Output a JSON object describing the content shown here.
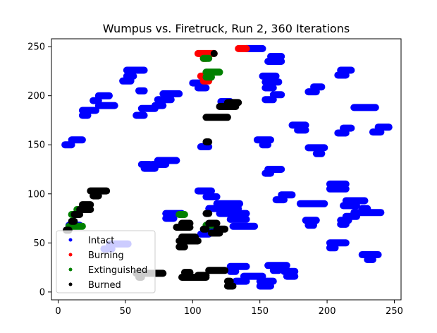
{
  "chart_data": {
    "type": "scatter",
    "title": "Wumpus vs. Firetruck, Run 2, 360 Iterations",
    "xlabel": "",
    "ylabel": "",
    "xlim": [
      -5,
      255
    ],
    "ylim": [
      -8,
      258
    ],
    "xticks": [
      0,
      50,
      100,
      150,
      200,
      250
    ],
    "yticks": [
      0,
      50,
      100,
      150,
      200,
      250
    ],
    "grid": false,
    "legend_position": "lower-left",
    "series": [
      {
        "name": "Intact",
        "color": "#0000ff",
        "segments": [
          [
            5,
            150,
            10,
            150
          ],
          [
            10,
            155,
            18,
            155
          ],
          [
            18,
            180,
            22,
            180
          ],
          [
            18,
            185,
            28,
            185
          ],
          [
            26,
            195,
            30,
            195
          ],
          [
            30,
            200,
            38,
            200
          ],
          [
            30,
            190,
            42,
            190
          ],
          [
            48,
            215,
            54,
            215
          ],
          [
            51,
            220,
            56,
            220
          ],
          [
            51,
            226,
            64,
            226
          ],
          [
            60,
            205,
            64,
            205
          ],
          [
            58,
            180,
            64,
            180
          ],
          [
            62,
            187,
            72,
            187
          ],
          [
            72,
            190,
            78,
            190
          ],
          [
            74,
            196,
            84,
            196
          ],
          [
            78,
            202,
            90,
            202
          ],
          [
            62,
            130,
            68,
            130
          ],
          [
            64,
            126,
            72,
            126
          ],
          [
            70,
            130,
            80,
            130
          ],
          [
            74,
            134,
            88,
            134
          ],
          [
            100,
            213,
            108,
            213
          ],
          [
            104,
            208,
            110,
            208
          ],
          [
            106,
            148,
            112,
            148
          ],
          [
            104,
            103,
            114,
            103
          ],
          [
            110,
            97,
            118,
            97
          ],
          [
            38,
            49,
            52,
            49
          ],
          [
            34,
            44,
            40,
            44
          ],
          [
            80,
            80,
            92,
            80
          ],
          [
            80,
            75,
            86,
            75
          ],
          [
            106,
            59,
            112,
            59
          ],
          [
            112,
            64,
            118,
            64
          ],
          [
            112,
            85,
            134,
            85
          ],
          [
            118,
            90,
            135,
            90
          ],
          [
            120,
            80,
            140,
            80
          ],
          [
            128,
            74,
            140,
            74
          ],
          [
            130,
            67,
            146,
            67
          ],
          [
            121,
            194,
            128,
            194
          ],
          [
            140,
            248,
            152,
            248
          ],
          [
            148,
            155,
            158,
            155
          ],
          [
            152,
            150,
            156,
            150
          ],
          [
            156,
            235,
            166,
            235
          ],
          [
            158,
            240,
            166,
            240
          ],
          [
            152,
            220,
            162,
            220
          ],
          [
            154,
            214,
            164,
            214
          ],
          [
            154,
            208,
            160,
            208
          ],
          [
            154,
            196,
            160,
            196
          ],
          [
            160,
            201,
            166,
            201
          ],
          [
            154,
            121,
            158,
            121
          ],
          [
            156,
            125,
            166,
            125
          ],
          [
            162,
            94,
            168,
            94
          ],
          [
            166,
            99,
            174,
            99
          ],
          [
            174,
            170,
            184,
            170
          ],
          [
            178,
            165,
            184,
            165
          ],
          [
            186,
            204,
            192,
            204
          ],
          [
            190,
            209,
            196,
            209
          ],
          [
            186,
            147,
            198,
            147
          ],
          [
            192,
            141,
            196,
            141
          ],
          [
            180,
            90,
            198,
            90
          ],
          [
            184,
            73,
            192,
            73
          ],
          [
            186,
            68,
            190,
            68
          ],
          [
            202,
            105,
            214,
            105
          ],
          [
            202,
            110,
            214,
            110
          ],
          [
            202,
            50,
            214,
            50
          ],
          [
            202,
            45,
            206,
            45
          ],
          [
            208,
            221,
            214,
            221
          ],
          [
            210,
            226,
            218,
            226
          ],
          [
            208,
            162,
            214,
            162
          ],
          [
            212,
            167,
            218,
            167
          ],
          [
            220,
            188,
            236,
            188
          ],
          [
            238,
            168,
            246,
            168
          ],
          [
            234,
            163,
            240,
            163
          ],
          [
            214,
            93,
            228,
            93
          ],
          [
            212,
            88,
            222,
            88
          ],
          [
            220,
            81,
            240,
            81
          ],
          [
            214,
            77,
            222,
            77
          ],
          [
            210,
            73,
            216,
            73
          ],
          [
            210,
            69,
            214,
            69
          ],
          [
            226,
            85,
            230,
            85
          ],
          [
            226,
            38,
            238,
            38
          ],
          [
            230,
            33,
            234,
            33
          ],
          [
            128,
            26,
            140,
            26
          ],
          [
            128,
            21,
            132,
            21
          ],
          [
            132,
            11,
            140,
            11
          ],
          [
            138,
            16,
            152,
            16
          ],
          [
            150,
            6,
            158,
            6
          ],
          [
            150,
            11,
            160,
            11
          ],
          [
            156,
            27,
            170,
            27
          ],
          [
            160,
            22,
            164,
            22
          ],
          [
            168,
            21,
            176,
            21
          ],
          [
            170,
            16,
            176,
            16
          ],
          [
            8,
            68,
            16,
            68
          ]
        ]
      },
      {
        "name": "Burning",
        "color": "#ff0000",
        "segments": [
          [
            104,
            243,
            116,
            243
          ],
          [
            108,
            238,
            110,
            238
          ],
          [
            134,
            248,
            140,
            248
          ],
          [
            106,
            220,
            110,
            220
          ],
          [
            108,
            215,
            112,
            215
          ]
        ]
      },
      {
        "name": "Extinguished",
        "color": "#008000",
        "segments": [
          [
            110,
            224,
            120,
            224
          ],
          [
            110,
            219,
            114,
            219
          ],
          [
            108,
            238,
            112,
            238
          ],
          [
            8,
            67,
            18,
            67
          ],
          [
            10,
            79,
            14,
            79
          ],
          [
            90,
            79,
            94,
            79
          ],
          [
            110,
            68,
            114,
            68
          ],
          [
            14,
            84,
            16,
            84
          ],
          [
            128,
            189,
            130,
            189
          ]
        ]
      },
      {
        "name": "Burned",
        "color": "#000000",
        "segments": [
          [
            24,
            103,
            36,
            103
          ],
          [
            26,
            98,
            30,
            98
          ],
          [
            18,
            89,
            24,
            89
          ],
          [
            16,
            84,
            24,
            84
          ],
          [
            12,
            79,
            16,
            79
          ],
          [
            6,
            63,
            8,
            63
          ],
          [
            10,
            72,
            12,
            72
          ],
          [
            58,
            19,
            78,
            19
          ],
          [
            60,
            15,
            62,
            15
          ],
          [
            92,
            15,
            110,
            15
          ],
          [
            94,
            20,
            98,
            20
          ],
          [
            112,
            22,
            124,
            22
          ],
          [
            104,
            17,
            110,
            17
          ],
          [
            126,
            6,
            130,
            6
          ],
          [
            126,
            11,
            128,
            11
          ],
          [
            90,
            52,
            104,
            52
          ],
          [
            92,
            56,
            102,
            56
          ],
          [
            90,
            46,
            94,
            46
          ],
          [
            88,
            66,
            98,
            66
          ],
          [
            92,
            70,
            98,
            70
          ],
          [
            108,
            64,
            110,
            64
          ],
          [
            112,
            70,
            118,
            70
          ],
          [
            114,
            60,
            120,
            60
          ],
          [
            118,
            64,
            124,
            64
          ],
          [
            110,
            80,
            112,
            80
          ],
          [
            110,
            178,
            126,
            178
          ],
          [
            120,
            189,
            132,
            189
          ],
          [
            126,
            193,
            134,
            193
          ],
          [
            110,
            153,
            112,
            153
          ],
          [
            116,
            243,
            116,
            243
          ]
        ]
      }
    ]
  }
}
